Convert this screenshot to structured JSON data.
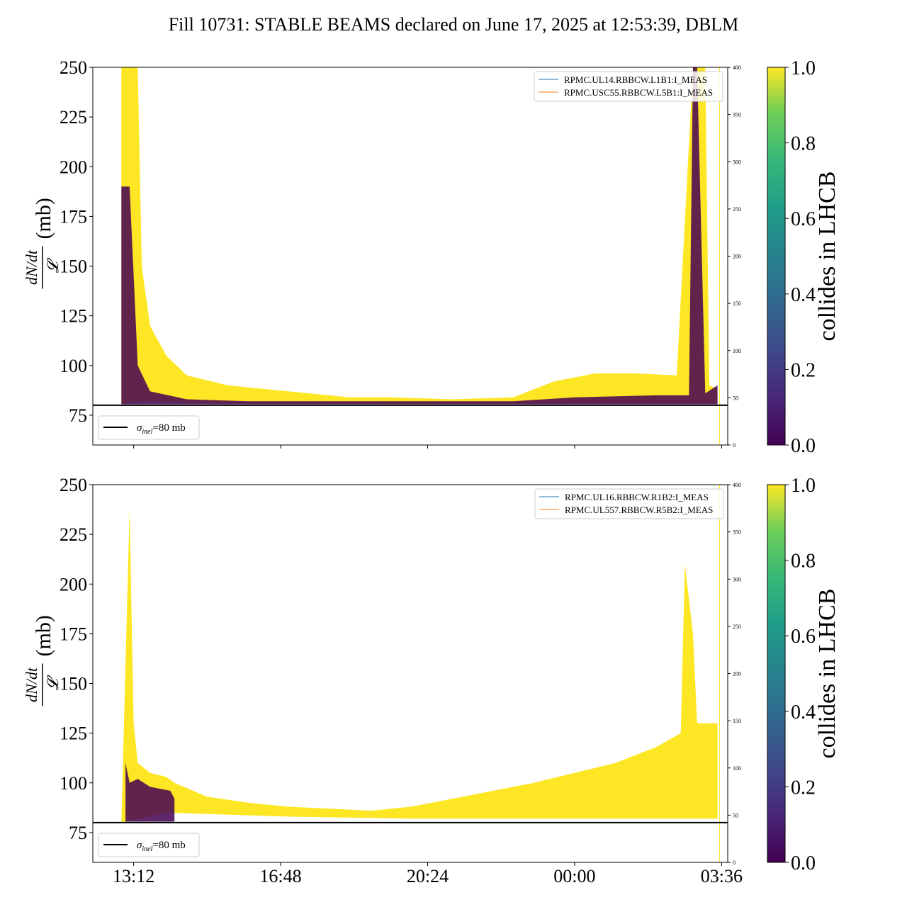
{
  "title": "Fill 10731: STABLE BEAMS declared on June 17, 2025 at 12:53:39, DBLM",
  "colors": {
    "collides_yes": "#fde725",
    "collides_no": "#440154",
    "reference_line": "#000000",
    "series_blue": "#1f77b4",
    "series_orange": "#ff7f0e"
  },
  "chart_data": [
    {
      "type": "area",
      "panel": "top",
      "ylabel_prefix": "dN/dt",
      "ylabel_denominator": "𝓛",
      "ylabel_unit": "(mb)",
      "ylim": [
        60,
        250
      ],
      "yticks": [
        "75",
        "100",
        "125",
        "150",
        "175",
        "200",
        "225",
        "250"
      ],
      "ytick_values": [
        75,
        100,
        125,
        150,
        175,
        200,
        225,
        250
      ],
      "secondary_ylim": [
        0,
        400
      ],
      "secondary_yticks": [
        "0",
        "50",
        "100",
        "150",
        "200",
        "250",
        "300",
        "350",
        "400"
      ],
      "x_tick_labels": [
        "13:12",
        "16:48",
        "20:24",
        "00:00",
        "03:36"
      ],
      "xlim_hours": [
        12.2,
        27.75
      ],
      "x_tick_hours": [
        13.2,
        16.8,
        20.4,
        24.0,
        27.6
      ],
      "legend": [
        "RPMC.UL14.RBBCW.L1B1:I_MEAS",
        "RPMC.USC55.RBBCW.L5B1:I_MEAS"
      ],
      "reference": {
        "label_symbol": "σ",
        "label_sub": "inel",
        "label_value": "=80 mb",
        "value": 80
      },
      "colorbar": {
        "label": "collides in LHCB",
        "ticks": [
          "0.0",
          "0.2",
          "0.4",
          "0.6",
          "0.8",
          "1.0"
        ],
        "range": [
          0,
          1
        ]
      },
      "upper_envelope": [
        [
          12.9,
          250
        ],
        [
          13.3,
          250
        ],
        [
          13.4,
          150
        ],
        [
          13.6,
          120
        ],
        [
          14.0,
          105
        ],
        [
          14.5,
          95
        ],
        [
          15.5,
          90
        ],
        [
          16.5,
          88
        ],
        [
          17.5,
          86
        ],
        [
          18.5,
          84
        ],
        [
          19.5,
          84
        ],
        [
          21.0,
          83
        ],
        [
          22.5,
          84
        ],
        [
          23.5,
          92
        ],
        [
          24.5,
          96
        ],
        [
          25.5,
          96
        ],
        [
          26.5,
          95
        ],
        [
          26.9,
          250
        ],
        [
          27.2,
          250
        ],
        [
          27.3,
          90
        ],
        [
          27.5,
          88
        ]
      ],
      "lower_envelope": [
        [
          12.9,
          81
        ],
        [
          13.5,
          82
        ],
        [
          15.0,
          81
        ],
        [
          20.0,
          80.5
        ],
        [
          24.0,
          81
        ],
        [
          27.5,
          81
        ]
      ],
      "noncolliding_upper": [
        [
          12.9,
          190
        ],
        [
          13.1,
          190
        ],
        [
          13.3,
          100
        ],
        [
          13.6,
          87
        ],
        [
          14.5,
          83
        ],
        [
          16.0,
          82
        ],
        [
          19.0,
          82
        ],
        [
          22.5,
          82
        ],
        [
          24.0,
          84
        ],
        [
          26.0,
          85
        ],
        [
          26.8,
          85
        ],
        [
          26.9,
          250
        ],
        [
          27.0,
          250
        ],
        [
          27.2,
          86
        ],
        [
          27.5,
          90
        ]
      ]
    },
    {
      "type": "area",
      "panel": "bottom",
      "ylabel_prefix": "dN/dt",
      "ylabel_denominator": "𝓛",
      "ylabel_unit": "(mb)",
      "ylim": [
        60,
        250
      ],
      "yticks": [
        "75",
        "100",
        "125",
        "150",
        "175",
        "200",
        "225",
        "250"
      ],
      "ytick_values": [
        75,
        100,
        125,
        150,
        175,
        200,
        225,
        250
      ],
      "secondary_ylim": [
        0,
        400
      ],
      "secondary_yticks": [
        "0",
        "50",
        "100",
        "150",
        "200",
        "250",
        "300",
        "350",
        "400"
      ],
      "x_tick_labels": [
        "13:12",
        "16:48",
        "20:24",
        "00:00",
        "03:36"
      ],
      "xlim_hours": [
        12.2,
        27.75
      ],
      "x_tick_hours": [
        13.2,
        16.8,
        20.4,
        24.0,
        27.6
      ],
      "legend": [
        "RPMC.UL16.RBBCW.R1B2:I_MEAS",
        "RPMC.UL557.RBBCW.R5B2:I_MEAS"
      ],
      "reference": {
        "label_symbol": "σ",
        "label_sub": "inel",
        "label_value": "=80 mb",
        "value": 80
      },
      "colorbar": {
        "label": "collides in LHCB",
        "ticks": [
          "0.0",
          "0.2",
          "0.4",
          "0.6",
          "0.8",
          "1.0"
        ],
        "range": [
          0,
          1
        ]
      },
      "upper_envelope": [
        [
          12.9,
          80
        ],
        [
          13.0,
          160
        ],
        [
          13.1,
          238
        ],
        [
          13.2,
          130
        ],
        [
          13.3,
          110
        ],
        [
          13.6,
          105
        ],
        [
          14.0,
          103
        ],
        [
          14.2,
          100
        ],
        [
          15.0,
          93
        ],
        [
          16.0,
          90
        ],
        [
          17.0,
          88
        ],
        [
          18.0,
          87
        ],
        [
          19.0,
          86
        ],
        [
          20.0,
          88
        ],
        [
          21.0,
          92
        ],
        [
          22.0,
          96
        ],
        [
          23.0,
          100
        ],
        [
          24.0,
          105
        ],
        [
          25.0,
          110
        ],
        [
          26.0,
          118
        ],
        [
          26.6,
          125
        ],
        [
          26.7,
          210
        ],
        [
          26.9,
          175
        ],
        [
          27.0,
          130
        ],
        [
          27.5,
          130
        ]
      ],
      "lower_envelope": [
        [
          12.9,
          80
        ],
        [
          14.0,
          85
        ],
        [
          17.0,
          83
        ],
        [
          20.0,
          82
        ],
        [
          24.0,
          82
        ],
        [
          27.5,
          82
        ]
      ],
      "noncolliding_upper": [
        [
          13.0,
          110
        ],
        [
          13.1,
          100
        ],
        [
          13.3,
          102
        ],
        [
          13.6,
          98
        ],
        [
          14.1,
          96
        ],
        [
          14.2,
          92
        ]
      ]
    }
  ]
}
